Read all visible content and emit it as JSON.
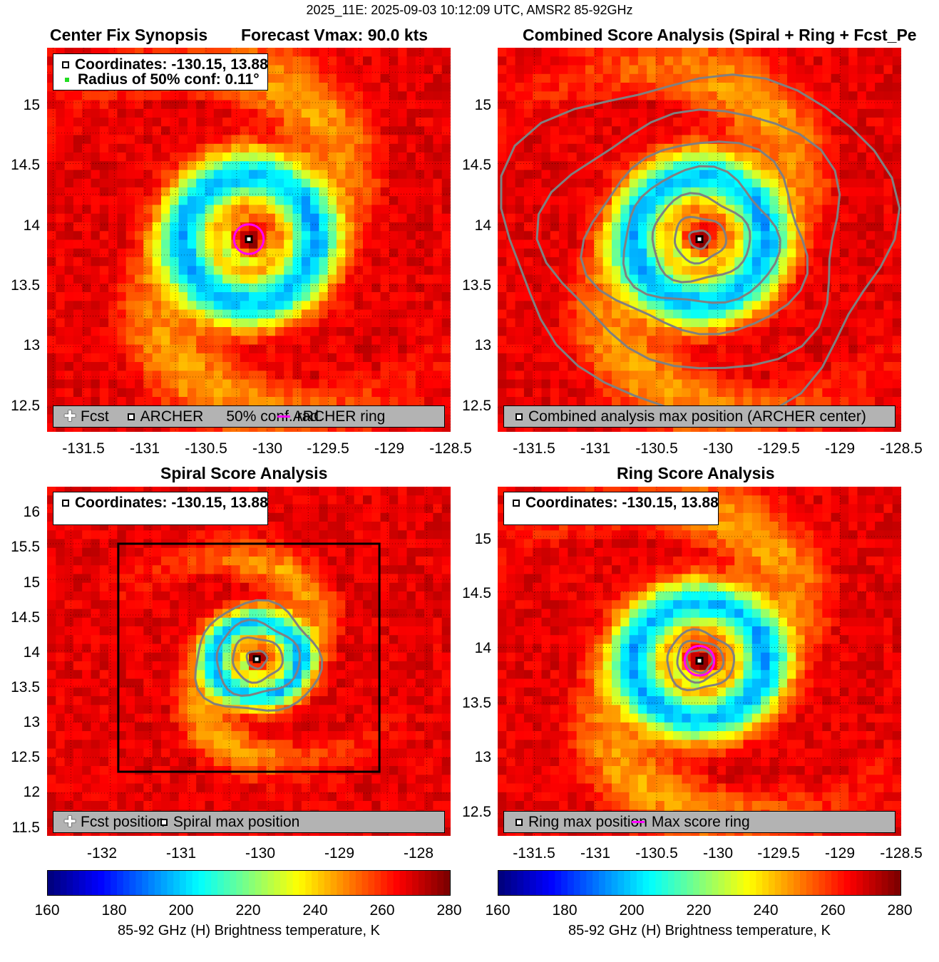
{
  "suptitle": "2025_11E: 2025-09-03 10:12:09 UTC, AMSR2 85-92GHz",
  "colors": {
    "contour": "#808080",
    "ring": "#ff00ff",
    "conf_marker": "#22dd22",
    "legend_bg": "#b3b3b3"
  },
  "panels": [
    {
      "id": "synopsis",
      "title_left": "Center Fix Synopsis",
      "title_right": "Forecast Vmax: 90.0 kts",
      "info": [
        "Coordinates: -130.15, 13.88",
        "Radius of 50% conf: 0.11°"
      ],
      "legend": [
        "Fcst",
        "ARCHER",
        "50% conf. rad.",
        "ARCHER ring"
      ],
      "xticks": [
        "-131.5",
        "-131",
        "-130.5",
        "-130",
        "-129.5",
        "-129",
        "-128.5"
      ],
      "yticks": [
        "15",
        "14.5",
        "14",
        "13.5",
        "13",
        "12.5"
      ]
    },
    {
      "id": "combined",
      "title": "Combined Score Analysis (Spiral + Ring + Fcst_Pe",
      "legend": [
        "Combined analysis max position (ARCHER center)"
      ],
      "xticks": [
        "-131.5",
        "-131",
        "-130.5",
        "-130",
        "-129.5",
        "-129",
        "-128.5"
      ],
      "yticks": [
        "15",
        "14.5",
        "14",
        "13.5",
        "13",
        "12.5"
      ]
    },
    {
      "id": "spiral",
      "title": "Spiral Score Analysis",
      "info": [
        "Coordinates: -130.15, 13.88"
      ],
      "legend": [
        "Fcst position",
        "Spiral max position"
      ],
      "xticks": [
        "-132",
        "-131",
        "-130",
        "-129",
        "-128"
      ],
      "yticks": [
        "16",
        "15.5",
        "15",
        "14.5",
        "14",
        "13.5",
        "13",
        "12.5",
        "12",
        "11.5"
      ]
    },
    {
      "id": "ring",
      "title": "Ring Score Analysis",
      "info": [
        "Coordinates: -130.15, 13.88"
      ],
      "legend": [
        "Ring max position",
        "Max score ring"
      ],
      "xticks": [
        "-131.5",
        "-131",
        "-130.5",
        "-130",
        "-129.5",
        "-129",
        "-128.5"
      ],
      "yticks": [
        "15",
        "14.5",
        "14",
        "13.5",
        "13",
        "12.5"
      ]
    }
  ],
  "chart_data": {
    "type": "heatmap",
    "variable": "85-92 GHz (H) Brightness temperature, K",
    "center_fix": {
      "lon": -130.15,
      "lat": 13.88
    },
    "radius_50pct_conf_deg": 0.11,
    "forecast_vmax_kts": 90.0,
    "colorbar": {
      "label": "85-92 GHz (H) Brightness temperature, K",
      "ticks": [
        "160",
        "180",
        "200",
        "220",
        "240",
        "260",
        "280"
      ],
      "range": [
        160,
        280
      ]
    },
    "axes": {
      "synopsis": {
        "xlim": [
          -131.8,
          -128.5
        ],
        "ylim": [
          12.3,
          15.45
        ]
      },
      "combined": {
        "xlim": [
          -131.8,
          -128.5
        ],
        "ylim": [
          12.3,
          15.45
        ]
      },
      "spiral": {
        "xlim": [
          -132.8,
          -127.7
        ],
        "ylim": [
          11.4,
          16.3
        ],
        "search_box": {
          "lon": [
            -131.9,
            -128.6
          ],
          "lat": [
            12.3,
            15.5
          ]
        }
      },
      "ring": {
        "xlim": [
          -131.8,
          -128.5
        ],
        "ylim": [
          12.3,
          15.45
        ]
      }
    }
  }
}
